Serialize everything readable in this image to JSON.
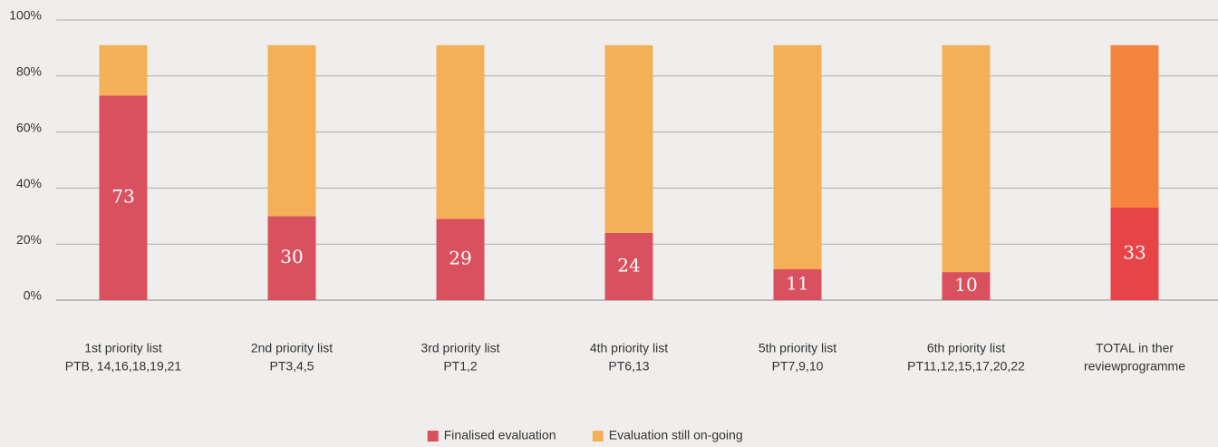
{
  "chart_data": {
    "type": "stacked_bar",
    "categories": [
      [
        "1st priority list",
        "PTB, 14,16,18,19,21"
      ],
      [
        "2nd priority list",
        "PT3,4,5"
      ],
      [
        "3rd priority list",
        "PT1,2"
      ],
      [
        "4th priority list",
        "PT6,13"
      ],
      [
        "5th priority list",
        "PT7,9,10"
      ],
      [
        "6th priority list",
        "PT11,12,15,17,20,22"
      ],
      [
        "TOTAL in ther",
        "reviewprogramme"
      ]
    ],
    "series": [
      {
        "name": "Finalised evaluation",
        "color": "#d9515e",
        "colors": [
          "#d9515e",
          "#d9515e",
          "#d9515e",
          "#d9515e",
          "#d9515e",
          "#d9515e",
          "#e84346"
        ],
        "values": [
          73,
          30,
          29,
          24,
          11,
          10,
          33
        ]
      },
      {
        "name": "Evaluation still on-going",
        "color": "#f3b057",
        "colors": [
          "#f3b057",
          "#f3b057",
          "#f3b057",
          "#f3b057",
          "#f3b057",
          "#f3b057",
          "#f5843f"
        ],
        "values": [
          18,
          61,
          62,
          67,
          80,
          81,
          58
        ]
      }
    ],
    "ylim": [
      0,
      100
    ],
    "yticks": [
      {
        "value": 0,
        "label": "0%"
      },
      {
        "value": 20,
        "label": "20%"
      },
      {
        "value": 40,
        "label": "40%"
      },
      {
        "value": 60,
        "label": "60%"
      },
      {
        "value": 80,
        "label": "80%"
      },
      {
        "value": 100,
        "label": "100%"
      }
    ],
    "grid": true,
    "legend": "bottom",
    "data_labels_series": 0
  }
}
